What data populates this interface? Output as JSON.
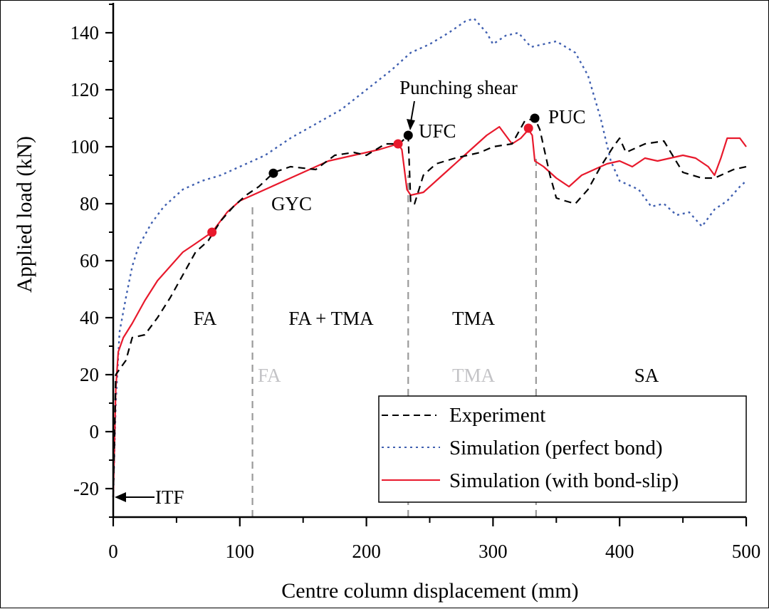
{
  "chart_data": {
    "type": "line",
    "title": "",
    "xlabel": "Centre column displacement (mm)",
    "ylabel": "Applied load (kN)",
    "xlim": [
      0,
      500
    ],
    "ylim": [
      -30,
      150
    ],
    "x_ticks": [
      0,
      100,
      200,
      300,
      400,
      500
    ],
    "y_ticks": [
      -20,
      0,
      20,
      40,
      60,
      80,
      100,
      120,
      140
    ],
    "x_tick_labels": [
      "0",
      "100",
      "200",
      "300",
      "400",
      "500"
    ],
    "y_tick_labels": [
      "-20",
      "0",
      "20",
      "40",
      "60",
      "80",
      "100",
      "120",
      "140"
    ],
    "grid": false,
    "legend_position": "bottom-right",
    "series": [
      {
        "name": "Experiment",
        "style": "dashed",
        "color": "#000000",
        "x": [
          0,
          2,
          10,
          15,
          25,
          35,
          45,
          55,
          65,
          75,
          85,
          95,
          105,
          115,
          127,
          140,
          160,
          175,
          190,
          200,
          215,
          226,
          233,
          235,
          238,
          245,
          255,
          270,
          290,
          300,
          315,
          325,
          333,
          337,
          345,
          350,
          357,
          365,
          375,
          385,
          395,
          400,
          405,
          420,
          435,
          450,
          465,
          475,
          490,
          500
        ],
        "y": [
          -23,
          20,
          25,
          33,
          34,
          40,
          47,
          55,
          63,
          67,
          74,
          79,
          83,
          86,
          91,
          93,
          92,
          97,
          98,
          97,
          101,
          101,
          104,
          80,
          80,
          90,
          94,
          96,
          98,
          100,
          101,
          109,
          110,
          106,
          90,
          82,
          81,
          80,
          85,
          93,
          100,
          103,
          98,
          101,
          102,
          91,
          89,
          89,
          92,
          93
        ]
      },
      {
        "name": "Simulation (perfect bond)",
        "style": "dotted",
        "color": "#3f5fb0",
        "x": [
          0,
          2,
          5,
          10,
          15,
          20,
          30,
          40,
          55,
          70,
          85,
          100,
          120,
          140,
          160,
          180,
          200,
          220,
          235,
          250,
          265,
          278,
          285,
          295,
          300,
          310,
          320,
          330,
          340,
          350,
          365,
          375,
          385,
          393,
          400,
          415,
          425,
          435,
          445,
          455,
          465,
          475,
          485,
          495,
          500
        ],
        "y": [
          -23,
          10,
          35,
          47,
          58,
          65,
          73,
          79,
          85,
          88,
          90,
          93,
          97,
          103,
          108,
          113,
          120,
          127,
          133,
          136,
          140,
          144,
          145,
          140,
          136,
          139,
          140,
          135,
          136,
          137,
          133,
          125,
          110,
          95,
          88,
          85,
          79,
          80,
          76,
          77,
          72,
          78,
          81,
          86,
          88
        ]
      },
      {
        "name": "Simulation (with bond-slip)",
        "style": "solid",
        "color": "#e8192c",
        "x": [
          0,
          2,
          4,
          8,
          15,
          25,
          35,
          45,
          55,
          65,
          78,
          90,
          100,
          110,
          125,
          140,
          155,
          170,
          190,
          210,
          225,
          228,
          232,
          235,
          245,
          255,
          265,
          280,
          295,
          305,
          315,
          322,
          328,
          331,
          333,
          340,
          350,
          360,
          370,
          380,
          390,
          400,
          410,
          420,
          430,
          440,
          450,
          460,
          470,
          475,
          480,
          485,
          495,
          500
        ],
        "y": [
          -23,
          15,
          28,
          33,
          38,
          46,
          53,
          58,
          63,
          66,
          70,
          77,
          81,
          83,
          86,
          89,
          92,
          95,
          97,
          99,
          101,
          99,
          85,
          83,
          84,
          88,
          92,
          98,
          104,
          107,
          101,
          103,
          106,
          104,
          95,
          93,
          89,
          86,
          90,
          92,
          94,
          95,
          93,
          96,
          95,
          96,
          97,
          96,
          93,
          90,
          96,
          103,
          103,
          100
        ]
      }
    ],
    "markers": [
      {
        "series": "Experiment",
        "label": "GYC",
        "x": 126.5,
        "y": 90.7,
        "color": "#000000"
      },
      {
        "series": "Experiment",
        "label": "UFC",
        "x": 233,
        "y": 104,
        "color": "#000000"
      },
      {
        "series": "Experiment",
        "label": "PUC",
        "x": 333,
        "y": 110,
        "color": "#000000"
      },
      {
        "series": "Simulation (with bond-slip)",
        "label": "",
        "x": 78,
        "y": 70,
        "color": "#e8192c"
      },
      {
        "series": "Simulation (with bond-slip)",
        "label": "",
        "x": 225,
        "y": 101,
        "color": "#e8192c"
      },
      {
        "series": "Simulation (with bond-slip)",
        "label": "",
        "x": 328,
        "y": 106.5,
        "color": "#e8192c"
      }
    ],
    "stage_boundaries": [
      110,
      233,
      334
    ],
    "annotations": [
      {
        "text": "Punching shear",
        "x": 233,
        "y": 104,
        "arrow": true
      },
      {
        "text": "ITF",
        "x": 0,
        "y": -23,
        "arrow": true
      },
      {
        "text": "GYC"
      },
      {
        "text": "UFC"
      },
      {
        "text": "PUC"
      }
    ],
    "region_labels_experiment": [
      "FA",
      "FA + TMA",
      "TMA"
    ],
    "region_labels_simulation": [
      "FA",
      "TMA",
      "SA"
    ]
  },
  "labels": {
    "punching_shear": "Punching shear",
    "itf": "ITF",
    "gyc": "GYC",
    "ufc": "UFC",
    "puc": "PUC",
    "region_fa": "FA",
    "region_fa_tma": "FA + TMA",
    "region_tma": "TMA",
    "region_fa_sim": "FA",
    "region_tma_sim": "TMA",
    "region_sa": "SA"
  },
  "legend": {
    "items": [
      {
        "label": "Experiment",
        "color": "#000000",
        "style": "dashed"
      },
      {
        "label": "Simulation (perfect bond)",
        "color": "#3f5fb0",
        "style": "dotted"
      },
      {
        "label": "Simulation (with bond-slip)",
        "color": "#e8192c",
        "style": "solid"
      }
    ]
  },
  "colors": {
    "boundary_line": "#9a9a9a",
    "gray_label": "#c3c3c6"
  }
}
